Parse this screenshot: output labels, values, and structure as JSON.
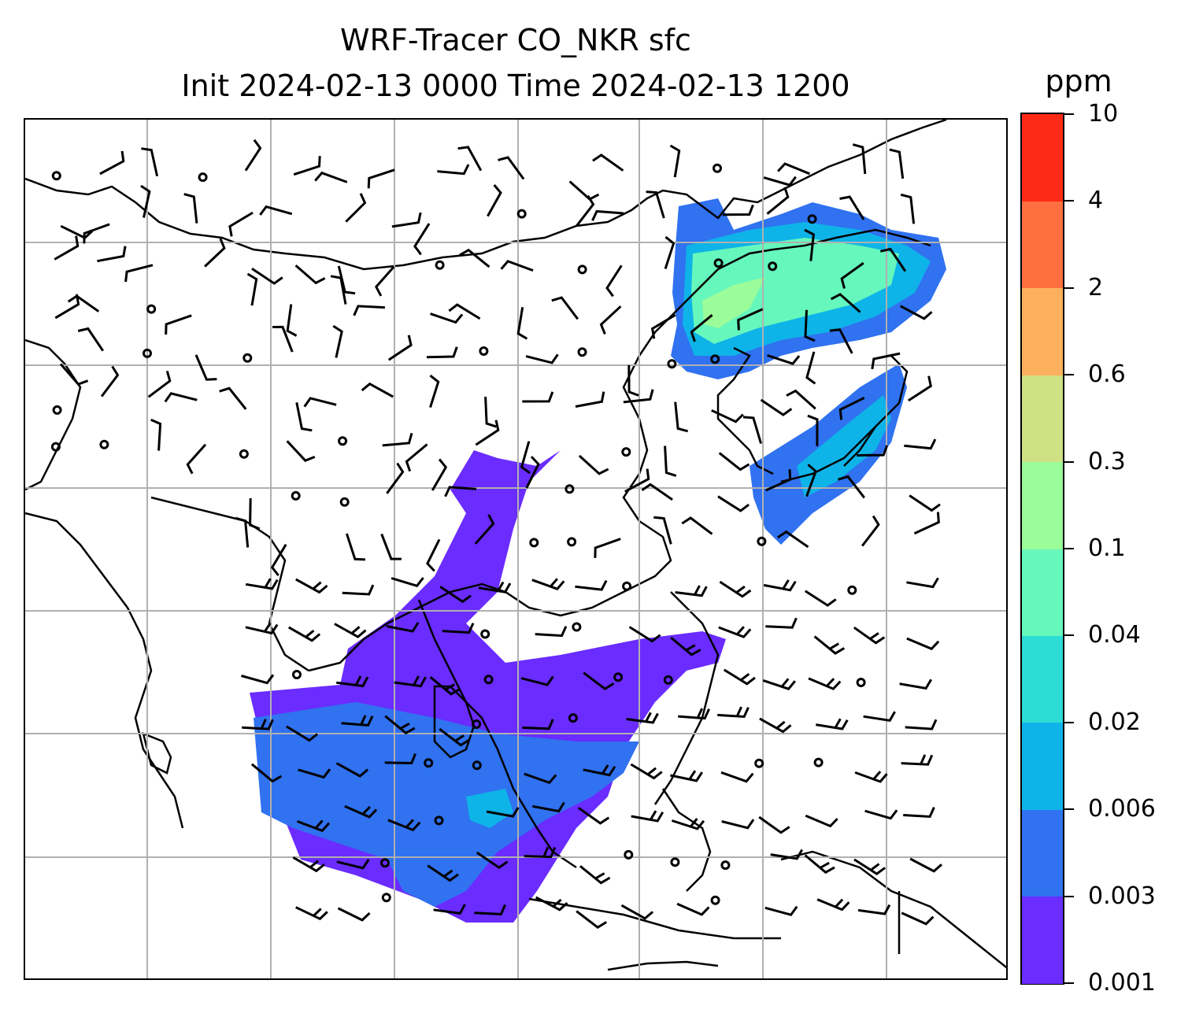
{
  "title": {
    "line1": "WRF-Tracer CO_NKR sfc",
    "line2": "Init 2024-02-13 0000 Time 2024-02-13 1200"
  },
  "colorbar": {
    "unit": "ppm",
    "levels": [
      "0.001",
      "0.003",
      "0.006",
      "0.02",
      "0.04",
      "0.1",
      "0.3",
      "0.6",
      "2",
      "4",
      "10"
    ],
    "colors": [
      "#6a2cff",
      "#3072f0",
      "#0eb4e8",
      "#2edcd6",
      "#66f7bc",
      "#9bfc9a",
      "#d0e184",
      "#fdb15e",
      "#ff7040",
      "#ff2a16"
    ]
  },
  "map": {
    "gridlines": "on",
    "features": [
      "coastlines",
      "country borders",
      "wind barbs",
      "tracer shading"
    ]
  }
}
